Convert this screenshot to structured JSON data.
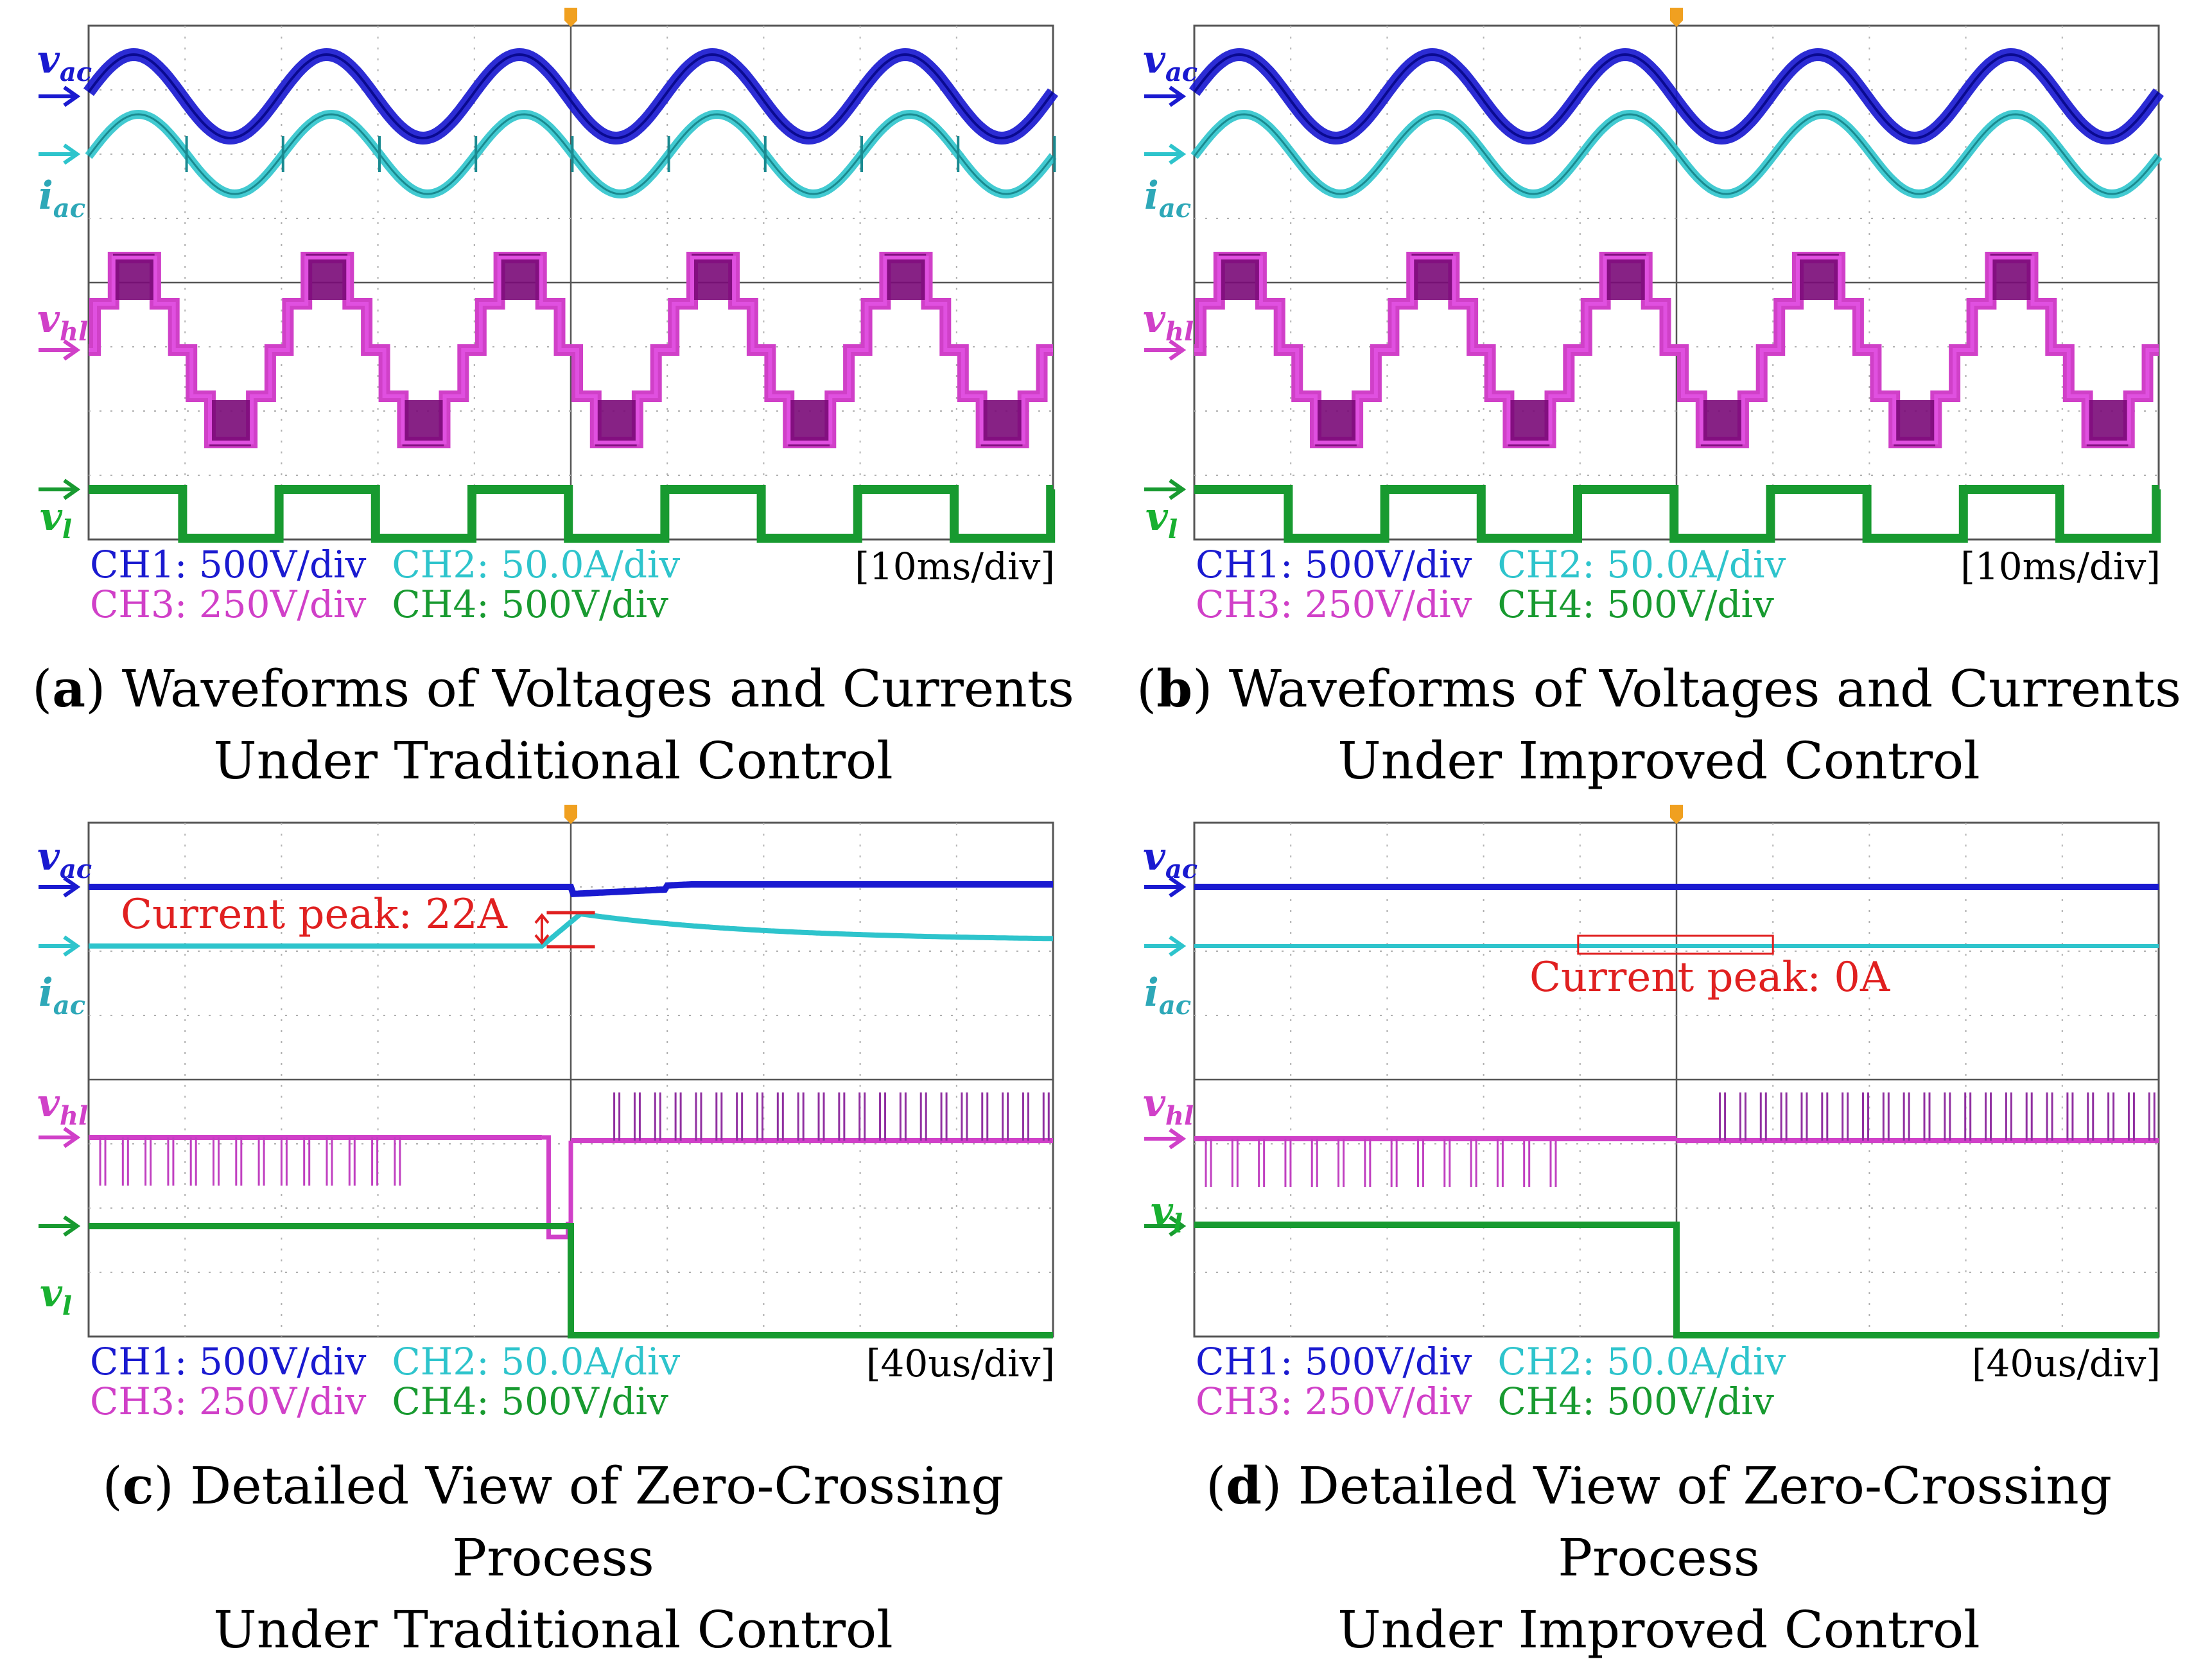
{
  "panels": [
    {
      "id": "a",
      "caption_letter": "a",
      "caption_line1": ") Waveforms of Voltages and Currents",
      "caption_line2": "Under Traditional Control",
      "timebase": "[10ms/div]",
      "annotation": ""
    },
    {
      "id": "b",
      "caption_letter": "b",
      "caption_line1": ") Waveforms of Voltages and Currents",
      "caption_line2": "Under Improved Control",
      "timebase": "[10ms/div]",
      "annotation": ""
    },
    {
      "id": "c",
      "caption_letter": "c",
      "caption_line1": ") Detailed View of Zero-Crossing Process",
      "caption_line2": "Under Traditional Control",
      "timebase": "[40us/div]",
      "annotation": "Current peak: 22A"
    },
    {
      "id": "d",
      "caption_letter": "d",
      "caption_line1": ") Detailed View of Zero-Crossing Process",
      "caption_line2": "Under Improved Control",
      "timebase": "[40us/div]",
      "annotation": "Current peak: 0A"
    }
  ],
  "channels": {
    "ch1": "CH1: 500V/div",
    "ch2": "CH2: 50.0A/div",
    "ch3": "CH3: 250V/div",
    "ch4": "CH4: 500V/div"
  },
  "signal_labels": {
    "vac_base": "v",
    "vac_sub": "ac",
    "iac_base": "i",
    "iac_sub": "ac",
    "vhl_base": "v",
    "vhl_sub": "hl",
    "vl_base": "v",
    "vl_sub": "l"
  },
  "colors": {
    "ch1": "#1a1ad0",
    "ch2": "#2ec4cc",
    "ch3": "#d040c8",
    "ch4": "#189a30",
    "annotation": "#e02020",
    "grid": "#b0b0b0"
  },
  "chart_data": [
    {
      "type": "line",
      "title": "Waveforms of Voltages and Currents Under Traditional Control",
      "xlabel": "time (10ms/div)",
      "x_divisions": 10,
      "series": [
        {
          "name": "v_ac (CH1, 500V/div)",
          "shape": "sine",
          "cycles": 5,
          "amplitude_div": 0.5
        },
        {
          "name": "i_ac (CH2, 50.0A/div)",
          "shape": "sine",
          "cycles": 5,
          "amplitude_div": 0.5,
          "notes": "small spikes at zero crossings"
        },
        {
          "name": "v_hl (CH3, 250V/div)",
          "shape": "staircase",
          "cycles": 5,
          "levels": [
            -2,
            -1,
            0,
            1,
            2
          ]
        },
        {
          "name": "v_l (CH4, 500V/div)",
          "shape": "square",
          "cycles": 5,
          "levels": [
            0,
            1
          ]
        }
      ]
    },
    {
      "type": "line",
      "title": "Waveforms of Voltages and Currents Under Improved Control",
      "xlabel": "time (10ms/div)",
      "x_divisions": 10,
      "series": [
        {
          "name": "v_ac (CH1, 500V/div)",
          "shape": "sine",
          "cycles": 5,
          "amplitude_div": 0.5
        },
        {
          "name": "i_ac (CH2, 50.0A/div)",
          "shape": "sine",
          "cycles": 5,
          "amplitude_div": 0.5
        },
        {
          "name": "v_hl (CH3, 250V/div)",
          "shape": "staircase",
          "cycles": 5,
          "levels": [
            -2,
            -1,
            0,
            1,
            2
          ]
        },
        {
          "name": "v_l (CH4, 500V/div)",
          "shape": "square",
          "cycles": 5,
          "levels": [
            0,
            1
          ]
        }
      ]
    },
    {
      "type": "line",
      "title": "Detailed View of Zero-Crossing Process Under Traditional Control",
      "xlabel": "time (40us/div)",
      "x_divisions": 10,
      "switch_time_div": 5,
      "current_peak_A": 22,
      "series": [
        {
          "name": "v_ac (CH1, 500V/div)",
          "shape": "flat"
        },
        {
          "name": "i_ac (CH2, 50.0A/div)",
          "shape": "step-decay",
          "peak_A": 22
        },
        {
          "name": "v_hl (CH3, 250V/div)",
          "shape": "pulses-then-step"
        },
        {
          "name": "v_l (CH4, 500V/div)",
          "shape": "step-down"
        }
      ]
    },
    {
      "type": "line",
      "title": "Detailed View of Zero-Crossing Process Under Improved Control",
      "xlabel": "time (40us/div)",
      "x_divisions": 10,
      "switch_time_div": 5,
      "current_peak_A": 0,
      "series": [
        {
          "name": "v_ac (CH1, 500V/div)",
          "shape": "flat"
        },
        {
          "name": "i_ac (CH2, 50.0A/div)",
          "shape": "flat",
          "peak_A": 0
        },
        {
          "name": "v_hl (CH3, 250V/div)",
          "shape": "pulses-then-pulses"
        },
        {
          "name": "v_l (CH4, 500V/div)",
          "shape": "step-down"
        }
      ]
    }
  ]
}
